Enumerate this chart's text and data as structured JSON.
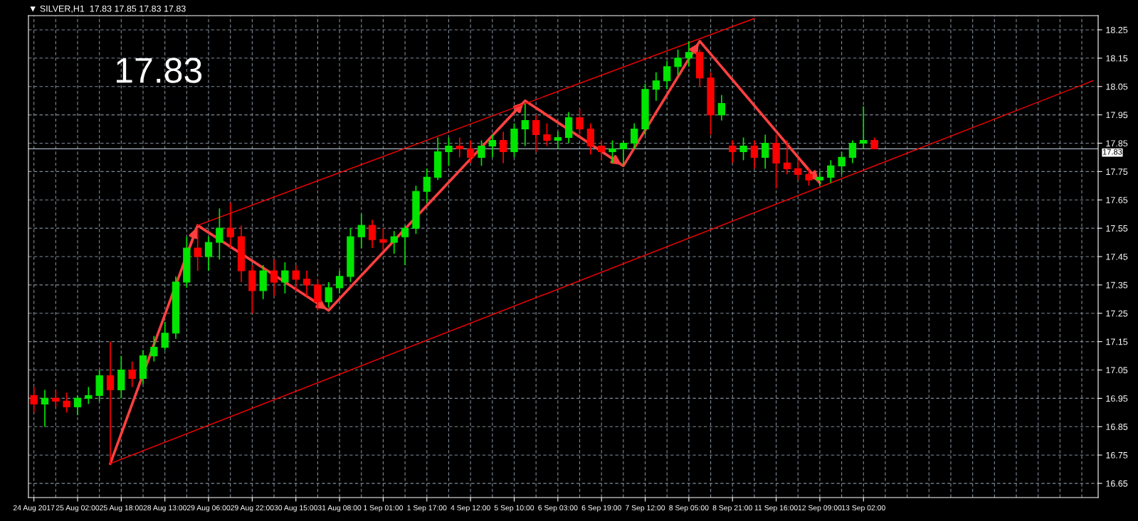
{
  "chart_data": {
    "type": "candlestick",
    "title": "▼ SILVER,H1  17.83 17.85 17.83 17.83",
    "annotations": [
      "17.83"
    ],
    "categories": [
      "24 Aug 2017",
      null,
      null,
      null,
      "25 Aug 02:00",
      null,
      null,
      null,
      "25 Aug 18:00",
      null,
      null,
      null,
      "28 Aug 13:00",
      null,
      null,
      null,
      "29 Aug 06:00",
      null,
      null,
      null,
      "29 Aug 22:00",
      null,
      null,
      null,
      "30 Aug 15:00",
      null,
      null,
      null,
      "31 Aug 08:00",
      null,
      null,
      null,
      "1 Sep 01:00",
      null,
      null,
      null,
      "1 Sep 17:00",
      null,
      null,
      null,
      "4 Sep 12:00",
      null,
      null,
      null,
      "5 Sep 10:00",
      null,
      null,
      null,
      "6 Sep 03:00",
      null,
      null,
      null,
      "6 Sep 19:00",
      null,
      null,
      null,
      "7 Sep 12:00",
      null,
      null,
      null,
      "8 Sep 05:00",
      null,
      null,
      null,
      "8 Sep 21:00",
      null,
      null,
      null,
      "11 Sep 16:00",
      null,
      null,
      null,
      "12 Sep 09:00",
      null,
      null,
      null,
      "13 Sep 02:00",
      null,
      null,
      null,
      null,
      null,
      null,
      null,
      null,
      null,
      null,
      null,
      null,
      null,
      null,
      null,
      null,
      null,
      null,
      null,
      null,
      null
    ],
    "ohlc": [
      [
        16.96,
        16.99,
        16.9,
        16.93
      ],
      [
        16.93,
        16.98,
        16.85,
        16.95
      ],
      [
        16.95,
        16.98,
        16.92,
        16.94
      ],
      [
        16.94,
        16.97,
        16.9,
        16.92
      ],
      [
        16.92,
        16.96,
        16.89,
        16.95
      ],
      [
        16.95,
        16.99,
        16.93,
        16.96
      ],
      [
        16.96,
        17.05,
        16.94,
        17.03
      ],
      [
        17.03,
        17.15,
        16.72,
        16.98
      ],
      [
        16.98,
        17.1,
        16.95,
        17.05
      ],
      [
        17.05,
        17.08,
        16.99,
        17.02
      ],
      [
        17.02,
        17.12,
        17.0,
        17.1
      ],
      [
        17.1,
        17.17,
        17.08,
        17.13
      ],
      [
        17.13,
        17.22,
        17.12,
        17.18
      ],
      [
        17.18,
        17.38,
        17.16,
        17.36
      ],
      [
        17.36,
        17.52,
        17.34,
        17.48
      ],
      [
        17.48,
        17.55,
        17.4,
        17.45
      ],
      [
        17.45,
        17.52,
        17.4,
        17.5
      ],
      [
        17.5,
        17.62,
        17.44,
        17.55
      ],
      [
        17.55,
        17.64,
        17.48,
        17.52
      ],
      [
        17.52,
        17.56,
        17.36,
        17.4
      ],
      [
        17.4,
        17.42,
        17.25,
        17.33
      ],
      [
        17.33,
        17.42,
        17.3,
        17.4
      ],
      [
        17.4,
        17.44,
        17.31,
        17.36
      ],
      [
        17.36,
        17.43,
        17.32,
        17.4
      ],
      [
        17.4,
        17.42,
        17.33,
        17.37
      ],
      [
        17.37,
        17.4,
        17.31,
        17.35
      ],
      [
        17.35,
        17.37,
        17.26,
        17.29
      ],
      [
        17.29,
        17.36,
        17.27,
        17.34
      ],
      [
        17.34,
        17.4,
        17.32,
        17.38
      ],
      [
        17.38,
        17.55,
        17.36,
        17.52
      ],
      [
        17.52,
        17.6,
        17.48,
        17.56
      ],
      [
        17.56,
        17.58,
        17.48,
        17.51
      ],
      [
        17.51,
        17.55,
        17.47,
        17.5
      ],
      [
        17.5,
        17.54,
        17.46,
        17.52
      ],
      [
        17.52,
        17.56,
        17.42,
        17.55
      ],
      [
        17.55,
        17.7,
        17.53,
        17.68
      ],
      [
        17.68,
        17.76,
        17.64,
        17.73
      ],
      [
        17.73,
        17.87,
        17.72,
        17.82
      ],
      [
        17.82,
        17.87,
        17.77,
        17.84
      ],
      [
        17.84,
        17.87,
        17.8,
        17.83
      ],
      [
        17.83,
        17.86,
        17.78,
        17.8
      ],
      [
        17.8,
        17.86,
        17.77,
        17.84
      ],
      [
        17.84,
        17.88,
        17.8,
        17.86
      ],
      [
        17.86,
        17.89,
        17.78,
        17.82
      ],
      [
        17.82,
        17.92,
        17.8,
        17.9
      ],
      [
        17.9,
        17.99,
        17.84,
        17.93
      ],
      [
        17.93,
        17.95,
        17.82,
        17.88
      ],
      [
        17.88,
        17.92,
        17.84,
        17.86
      ],
      [
        17.86,
        17.89,
        17.83,
        17.87
      ],
      [
        17.87,
        17.96,
        17.85,
        17.94
      ],
      [
        17.94,
        17.97,
        17.88,
        17.9
      ],
      [
        17.9,
        17.92,
        17.81,
        17.84
      ],
      [
        17.84,
        17.86,
        17.79,
        17.82
      ],
      [
        17.82,
        17.86,
        17.78,
        17.83
      ],
      [
        17.83,
        17.86,
        17.77,
        17.85
      ],
      [
        17.85,
        17.92,
        17.83,
        17.9
      ],
      [
        17.9,
        18.06,
        17.88,
        18.04
      ],
      [
        18.04,
        18.1,
        18.0,
        18.07
      ],
      [
        18.07,
        18.14,
        18.04,
        18.12
      ],
      [
        18.12,
        18.18,
        18.09,
        18.15
      ],
      [
        18.15,
        18.21,
        18.12,
        18.17
      ],
      [
        18.17,
        18.18,
        18.05,
        18.08
      ],
      [
        18.08,
        18.1,
        17.88,
        17.95
      ],
      [
        17.95,
        18.02,
        17.93,
        17.99
      ],
      [
        17.84,
        17.86,
        17.78,
        17.82
      ],
      [
        17.82,
        17.87,
        17.79,
        17.84
      ],
      [
        17.84,
        17.86,
        17.76,
        17.8
      ],
      [
        17.8,
        17.88,
        17.76,
        17.85
      ],
      [
        17.85,
        17.88,
        17.69,
        17.78
      ],
      [
        17.78,
        17.86,
        17.74,
        17.76
      ],
      [
        17.76,
        17.79,
        17.72,
        17.74
      ],
      [
        17.74,
        17.76,
        17.7,
        17.72
      ],
      [
        17.72,
        17.75,
        17.7,
        17.73
      ],
      [
        17.73,
        17.79,
        17.71,
        17.77
      ],
      [
        17.77,
        17.82,
        17.74,
        17.8
      ],
      [
        17.8,
        17.86,
        17.78,
        17.85
      ],
      [
        17.85,
        17.98,
        17.83,
        17.86
      ],
      [
        17.86,
        17.87,
        17.83,
        17.83
      ],
      null,
      null,
      null,
      null,
      null,
      null,
      null,
      null,
      null,
      null,
      null,
      null,
      null,
      null,
      null,
      null,
      null,
      null,
      null,
      null
    ],
    "colors": [
      "#ff0000",
      "#00e600",
      "#ff0000",
      "#ff0000",
      "#00e600",
      "#00e600",
      "#00e600",
      "#ff0000",
      "#00e600",
      "#ff0000",
      "#00e600",
      "#00e600",
      "#00e600",
      "#00e600",
      "#00e600",
      "#ff0000",
      "#00e600",
      "#00e600",
      "#ff0000",
      "#ff0000",
      "#ff0000",
      "#00e600",
      "#ff0000",
      "#00e600",
      "#ff0000",
      "#ff0000",
      "#ff0000",
      "#00e600",
      "#00e600",
      "#00e600",
      "#00e600",
      "#ff0000",
      "#ff0000",
      "#00e600",
      "#00e600",
      "#00e600",
      "#00e600",
      "#00e600",
      "#00e600",
      "#ff0000",
      "#ff0000",
      "#00e600",
      "#00e600",
      "#ff0000",
      "#00e600",
      "#00e600",
      "#ff0000",
      "#ff0000",
      "#00e600",
      "#00e600",
      "#ff0000",
      "#ff0000",
      "#ff0000",
      "#00e600",
      "#00e600",
      "#00e600",
      "#00e600",
      "#00e600",
      "#00e600",
      "#00e600",
      "#00e600",
      "#ff0000",
      "#ff0000",
      "#00e600",
      "#ff0000",
      "#00e600",
      "#ff0000",
      "#00e600",
      "#ff0000",
      "#ff0000",
      "#ff0000",
      "#ff0000",
      "#00e600",
      "#00e600",
      "#00e600",
      "#00e600",
      "#00e600",
      "#ff0000",
      null,
      null,
      null,
      null,
      null,
      null,
      null,
      null,
      null,
      null,
      null,
      null,
      null,
      null,
      null,
      null,
      null,
      null,
      null,
      null
    ],
    "series": [
      {
        "type": "line",
        "color": "#ff4040",
        "values": [
          null,
          null,
          null,
          null,
          null,
          null,
          null,
          16.72,
          null,
          null,
          null,
          null,
          null,
          null,
          null,
          17.56,
          null,
          null,
          null,
          null,
          null,
          null,
          null,
          null,
          null,
          null,
          null,
          17.26,
          null,
          null,
          null,
          null,
          null,
          null,
          null,
          null,
          null,
          null,
          null,
          null,
          null,
          null,
          null,
          null,
          null,
          18.0,
          null,
          null,
          null,
          null,
          null,
          null,
          null,
          null,
          17.77,
          null,
          null,
          null,
          null,
          null,
          null,
          18.21,
          null,
          null,
          null,
          null,
          null,
          null,
          null,
          null,
          null,
          null,
          17.71,
          null,
          null,
          null,
          null,
          null,
          null,
          null,
          null,
          null,
          null,
          null,
          null,
          null,
          null,
          null,
          null,
          null,
          null,
          null,
          null,
          null,
          null,
          null,
          null,
          null
        ]
      },
      {
        "type": "line",
        "color": "#ff0000",
        "values": [
          null,
          null,
          null,
          null,
          null,
          null,
          null,
          null,
          null,
          null,
          null,
          null,
          null,
          null,
          null,
          17.56,
          null,
          null,
          null,
          null,
          null,
          null,
          null,
          null,
          null,
          null,
          null,
          null,
          null,
          null,
          null,
          null,
          null,
          null,
          null,
          null,
          null,
          null,
          null,
          null,
          null,
          null,
          null,
          null,
          null,
          null,
          null,
          null,
          null,
          null,
          null,
          null,
          null,
          null,
          null,
          null,
          null,
          null,
          null,
          null,
          null,
          null,
          null,
          null,
          null,
          null,
          18.29,
          null,
          null,
          null,
          null,
          null,
          null,
          null,
          null,
          null,
          null,
          null,
          null,
          null,
          null,
          null,
          null,
          null,
          null,
          null,
          null,
          null,
          null,
          null,
          null,
          null,
          null,
          null,
          null,
          null,
          null,
          null
        ]
      },
      {
        "type": "line",
        "color": "#ff0000",
        "values": [
          null,
          null,
          null,
          null,
          null,
          null,
          null,
          16.72,
          null,
          null,
          null,
          null,
          null,
          null,
          null,
          null,
          null,
          null,
          null,
          null,
          null,
          null,
          null,
          null,
          null,
          null,
          null,
          null,
          null,
          null,
          null,
          null,
          null,
          null,
          null,
          null,
          null,
          null,
          null,
          null,
          null,
          null,
          null,
          null,
          null,
          null,
          null,
          null,
          null,
          null,
          null,
          null,
          null,
          null,
          null,
          null,
          null,
          null,
          null,
          null,
          null,
          null,
          null,
          null,
          null,
          null,
          null,
          null,
          null,
          null,
          null,
          null,
          null,
          null,
          null,
          null,
          null,
          null,
          null,
          null,
          null,
          null,
          null,
          null,
          null,
          null,
          null,
          null,
          null,
          null,
          null,
          null,
          null,
          null,
          null,
          null,
          null,
          18.07
        ]
      }
    ],
    "ref_lines": [
      {
        "axis": "y",
        "value": 17.83,
        "label": "17.83",
        "color": "#a8b4c4"
      }
    ],
    "ylim": [
      16.6,
      18.3
    ],
    "yticks": [
      16.65,
      16.75,
      16.85,
      16.95,
      17.05,
      17.15,
      17.25,
      17.35,
      17.45,
      17.55,
      17.65,
      17.75,
      17.85,
      17.95,
      18.05,
      18.15,
      18.25
    ],
    "grid": true
  }
}
